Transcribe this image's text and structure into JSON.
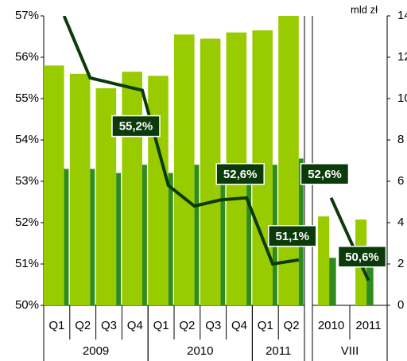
{
  "chart_data": {
    "type": "bar",
    "y2_label": "mld zł",
    "ylim": [
      50,
      57
    ],
    "yticks": [
      {
        "value": 50,
        "label": "50%"
      },
      {
        "value": 51,
        "label": "51%"
      },
      {
        "value": 52,
        "label": "52%"
      },
      {
        "value": 53,
        "label": "53%"
      },
      {
        "value": 54,
        "label": "54%"
      },
      {
        "value": 55,
        "label": "55%"
      },
      {
        "value": 56,
        "label": "56%"
      },
      {
        "value": 57,
        "label": "57%"
      }
    ],
    "y2lim": [
      0,
      14
    ],
    "y2ticks": [
      0,
      2,
      4,
      6,
      8,
      10,
      12,
      14
    ],
    "panels": [
      {
        "groups": [
          {
            "label": "2009",
            "categories": [
              "Q1",
              "Q2",
              "Q3",
              "Q4"
            ]
          },
          {
            "label": "2010",
            "categories": [
              "Q1",
              "Q2",
              "Q3",
              "Q4"
            ]
          },
          {
            "label": "2011",
            "categories": [
              "Q1",
              "Q2"
            ]
          }
        ],
        "series": [
          {
            "type": "bar",
            "axis": "y2",
            "color": "#99cc00",
            "values": [
              11.6,
              11.2,
              10.5,
              11.3,
              11.1,
              13.1,
              12.9,
              13.2,
              13.3,
              14.0
            ]
          },
          {
            "type": "bar",
            "axis": "y2",
            "color": "#2e8b1e",
            "values": [
              6.6,
              6.6,
              6.4,
              6.8,
              6.4,
              6.8,
              6.7,
              6.8,
              6.8,
              7.1
            ]
          },
          {
            "type": "line",
            "color": "#0b3a0b",
            "values": [
              57.0,
              55.5,
              55.35,
              55.2,
              52.9,
              52.4,
              52.55,
              52.6,
              51.0,
              51.1
            ],
            "value_labels": [
              null,
              null,
              null,
              "55,2%",
              null,
              null,
              null,
              "52,6%",
              null,
              "51,1%"
            ]
          }
        ]
      },
      {
        "groups": [
          {
            "label": "VIII",
            "categories": [
              "2010",
              "2011"
            ]
          }
        ],
        "series": [
          {
            "type": "bar",
            "axis": "y2",
            "color": "#99cc00",
            "values": [
              4.3,
              4.15
            ]
          },
          {
            "type": "bar",
            "axis": "y2",
            "color": "#2e8b1e",
            "values": [
              2.3,
              2.0
            ]
          },
          {
            "type": "line",
            "color": "#0b3a0b",
            "values": [
              52.6,
              50.6
            ],
            "value_labels": [
              "52,6%",
              "50,6%"
            ]
          }
        ]
      }
    ]
  }
}
